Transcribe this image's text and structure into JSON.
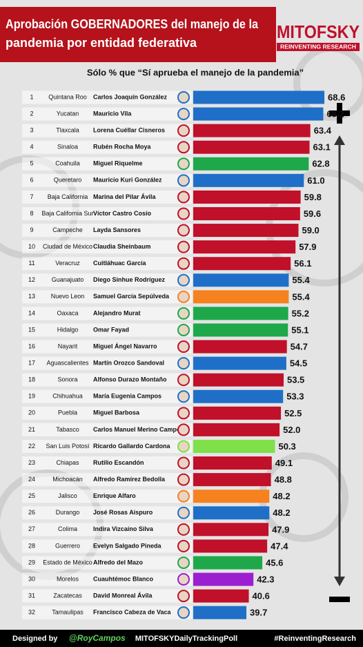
{
  "header": {
    "title": [
      "Aprobación GOBERNADORES del manejo de la",
      "pandemia por entidad federativa"
    ],
    "brand": "MITOFSKY",
    "tagline": "REINVENTING RESEARCH"
  },
  "chart_data": {
    "type": "bar",
    "subtitle": "Sólo % que “Sí aprueba el manejo de la pandemia”",
    "ranks": [
      1,
      2,
      3,
      4,
      5,
      6,
      7,
      8,
      9,
      10,
      11,
      12,
      13,
      14,
      15,
      16,
      17,
      18,
      19,
      20,
      21,
      22,
      23,
      24,
      25,
      26,
      27,
      28,
      29,
      30,
      31,
      32
    ],
    "categories": [
      "Quintana Roo",
      "Yucatan",
      "Tlaxcala",
      "Sinaloa",
      "Coahuila",
      "Queretaro",
      "Baja California",
      "Baja California Sur",
      "Campeche",
      "Ciudad de México",
      "Veracruz",
      "Guanajuato",
      "Nuevo Leon",
      "Oaxaca",
      "Hidalgo",
      "Nayarit",
      "Aguascalientes",
      "Sonora",
      "Chihuahua",
      "Puebla",
      "Tabasco",
      "San Luis Potosí",
      "Chiapas",
      "Michoacán",
      "Jalisco",
      "Durango",
      "Colima",
      "Guerrero",
      "Estado de México",
      "Morelos",
      "Zacatecas",
      "Tamaulipas"
    ],
    "governors": [
      "Carlos Joaquín González",
      "Mauricio Vila",
      "Lorena Cuéllar Cisneros",
      "Rubén Rocha Moya",
      "Miguel Riquelme",
      "Mauricio Kuri González",
      "Marina del Pilar Ávila",
      "Víctor Castro Cosío",
      "Layda Sansores",
      "Claudia Sheinbaum",
      "Cuitláhuac García",
      "Diego Sinhue Rodríguez",
      "Samuel García Sepúlveda",
      "Alejandro Murat",
      "Omar Fayad",
      "Miguel Ángel Navarro",
      "Martín Orozco Sandoval",
      "Alfonso Durazo Montaño",
      "María Eugenia Campos",
      "Miguel Barbosa",
      "Carlos Manuel Merino Campos",
      "Ricardo Gallardo Cardona",
      "Rutilio Escandón",
      "Alfredo Ramírez Bedolla",
      "Enrique Alfaro",
      "José Rosas Aispuro",
      "Indira Vizcaíno Silva",
      "Evelyn Salgado Pineda",
      "Alfredo del Mazo",
      "Cuauhtémoc Blanco",
      "David Monreal Ávila",
      "Francisco Cabeza de Vaca"
    ],
    "values": [
      68.6,
      68.2,
      63.4,
      63.1,
      62.8,
      61.0,
      59.8,
      59.6,
      59.0,
      57.9,
      56.1,
      55.4,
      55.4,
      55.2,
      55.1,
      54.7,
      54.5,
      53.5,
      53.3,
      52.5,
      52.0,
      50.3,
      49.1,
      48.8,
      48.2,
      48.2,
      47.9,
      47.4,
      45.6,
      42.3,
      40.6,
      39.7
    ],
    "value_labels": [
      "68.6",
      "68.2",
      "63.4",
      "63.1",
      "62.8",
      "61.0",
      "59.8",
      "59.6",
      "59.0",
      "57.9",
      "56.1",
      "55.4",
      "55.4",
      "55.2",
      "55.1",
      "54.7",
      "54.5",
      "53.5",
      "53.3",
      "52.5",
      "52.0",
      "50.3",
      "49.1",
      "48.8",
      "48.2",
      "48.2",
      "47.9",
      "47.4",
      "45.6",
      "42.3",
      "40.6",
      "39.7"
    ],
    "colors": [
      "#1f6fc8",
      "#1f6fc8",
      "#c0102a",
      "#c0102a",
      "#1ea84a",
      "#1f6fc8",
      "#c0102a",
      "#c0102a",
      "#c0102a",
      "#c0102a",
      "#c0102a",
      "#1f6fc8",
      "#f5821f",
      "#1ea84a",
      "#1ea84a",
      "#c0102a",
      "#1f6fc8",
      "#c0102a",
      "#1f6fc8",
      "#c0102a",
      "#c0102a",
      "#7fe04a",
      "#c0102a",
      "#c0102a",
      "#f5821f",
      "#1f6fc8",
      "#c0102a",
      "#c0102a",
      "#1ea84a",
      "#9b1fd1",
      "#c0102a",
      "#1f6fc8"
    ],
    "xlim": [
      20,
      70
    ]
  },
  "footer": {
    "designed": "Designed by",
    "author": "@RoyCampos",
    "poll": "MITOFSKYDailyTrackingPoll",
    "hashtag": "#ReinventingResearch"
  }
}
